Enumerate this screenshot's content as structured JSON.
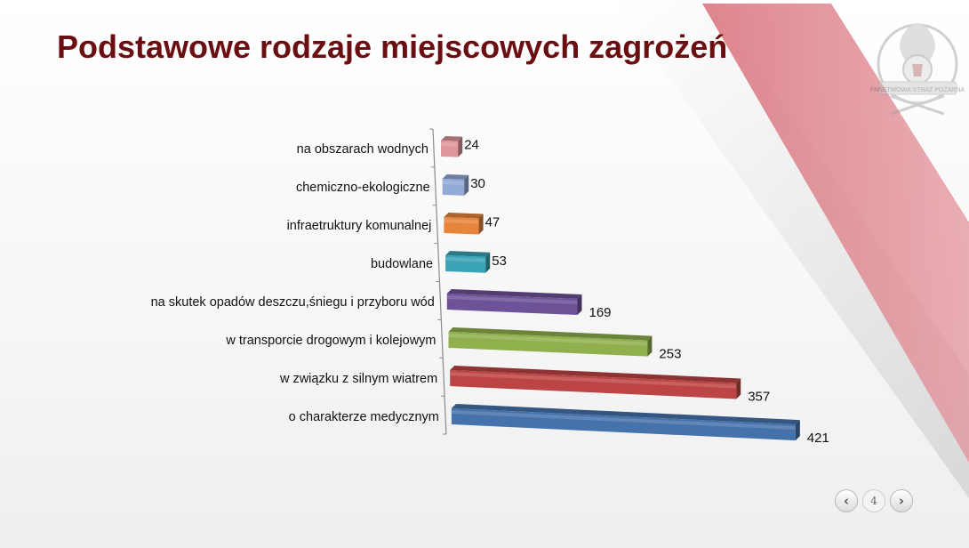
{
  "slide": {
    "title": "Podstawowe rodzaje miejscowych zagrożeń",
    "logo_icon": "fire-service-emblem",
    "logo_text": "PAŃSTWOWA STRAŻ POŻARNA",
    "accent_color": "#d9707a",
    "title_color": "#6b0e12"
  },
  "chart_data": {
    "type": "bar",
    "orientation": "horizontal",
    "style": "3d",
    "title": "",
    "xlabel": "",
    "ylabel": "",
    "grid": false,
    "legend": "none",
    "xlim": [
      0,
      421
    ],
    "categories": [
      "na obszarach wodnych",
      "chemiczno-ekologiczne",
      "infraetruktury komunalnej",
      "budowlane",
      "na skutek opadów deszczu,śniegu i przyboru wód",
      "w transporcie drogowym i kolejowym",
      "w związku z silnym wiatrem",
      "o charakterze medycznym"
    ],
    "values": [
      24,
      30,
      47,
      53,
      169,
      253,
      357,
      421
    ],
    "colors": [
      "#e0959a",
      "#93a9d6",
      "#e6843c",
      "#3aa3b5",
      "#6d5298",
      "#8fb04d",
      "#bd4444",
      "#4572aa"
    ]
  },
  "pager": {
    "page_number": "4",
    "prev_icon": "chevron-left-icon",
    "next_icon": "chevron-right-icon",
    "prev_glyph": "‹",
    "next_glyph": "›"
  }
}
